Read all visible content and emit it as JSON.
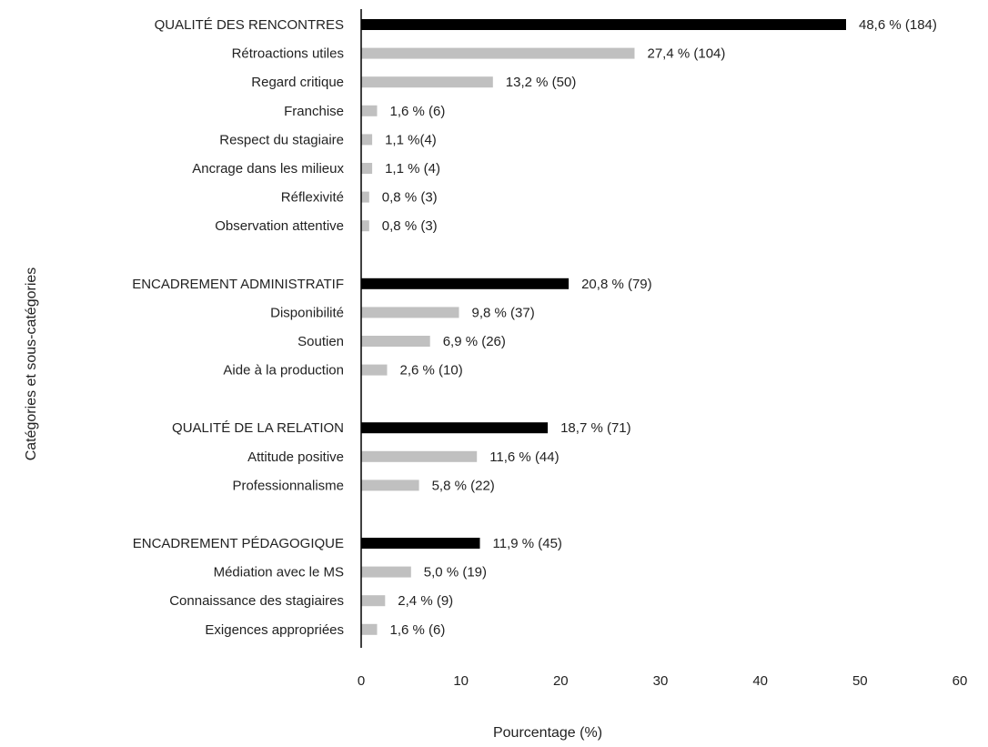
{
  "chart_data": {
    "type": "bar",
    "orientation": "horizontal",
    "xlabel": "Pourcentage (%)",
    "ylabel": "Catégories et sous-catégories",
    "xlim": [
      0,
      60
    ],
    "xticks": [
      0,
      10,
      20,
      30,
      40,
      50,
      60
    ],
    "grid": false,
    "colors": {
      "category": "#000000",
      "subcategory": "#c0c0c0"
    },
    "groups": [
      {
        "name": "QUALITÉ DES RENCONTRES",
        "value": 48.6,
        "label": "48,6 % (184)",
        "items": [
          {
            "name": "Rétroactions utiles",
            "value": 27.4,
            "label": "27,4 % (104)"
          },
          {
            "name": "Regard critique",
            "value": 13.2,
            "label": "13,2 % (50)"
          },
          {
            "name": "Franchise",
            "value": 1.6,
            "label": "1,6 % (6)"
          },
          {
            "name": "Respect du stagiaire",
            "value": 1.1,
            "label": "1,1 %(4)"
          },
          {
            "name": "Ancrage dans les milieux",
            "value": 1.1,
            "label": "1,1 % (4)"
          },
          {
            "name": "Réflexivité",
            "value": 0.8,
            "label": "0,8 % (3)"
          },
          {
            "name": "Observation attentive",
            "value": 0.8,
            "label": "0,8 % (3)"
          }
        ]
      },
      {
        "name": "ENCADREMENT ADMINISTRATIF",
        "value": 20.8,
        "label": "20,8 % (79)",
        "items": [
          {
            "name": "Disponibilité",
            "value": 9.8,
            "label": "9,8 % (37)"
          },
          {
            "name": "Soutien",
            "value": 6.9,
            "label": "6,9 % (26)"
          },
          {
            "name": "Aide à la production",
            "value": 2.6,
            "label": "2,6 % (10)"
          }
        ]
      },
      {
        "name": "QUALITÉ DE LA RELATION",
        "value": 18.7,
        "label": "18,7 % (71)",
        "items": [
          {
            "name": "Attitude positive",
            "value": 11.6,
            "label": "11,6 % (44)"
          },
          {
            "name": "Professionnalisme",
            "value": 5.8,
            "label": "5,8 % (22)"
          }
        ]
      },
      {
        "name": "ENCADREMENT PÉDAGOGIQUE",
        "value": 11.9,
        "label": "11,9 % (45)",
        "items": [
          {
            "name": "Médiation avec le MS",
            "value": 5.0,
            "label": "5,0 % (19)"
          },
          {
            "name": "Connaissance des stagiaires",
            "value": 2.4,
            "label": "2,4 % (9)"
          },
          {
            "name": "Exigences appropriées",
            "value": 1.6,
            "label": "1,6 % (6)"
          }
        ]
      }
    ]
  }
}
